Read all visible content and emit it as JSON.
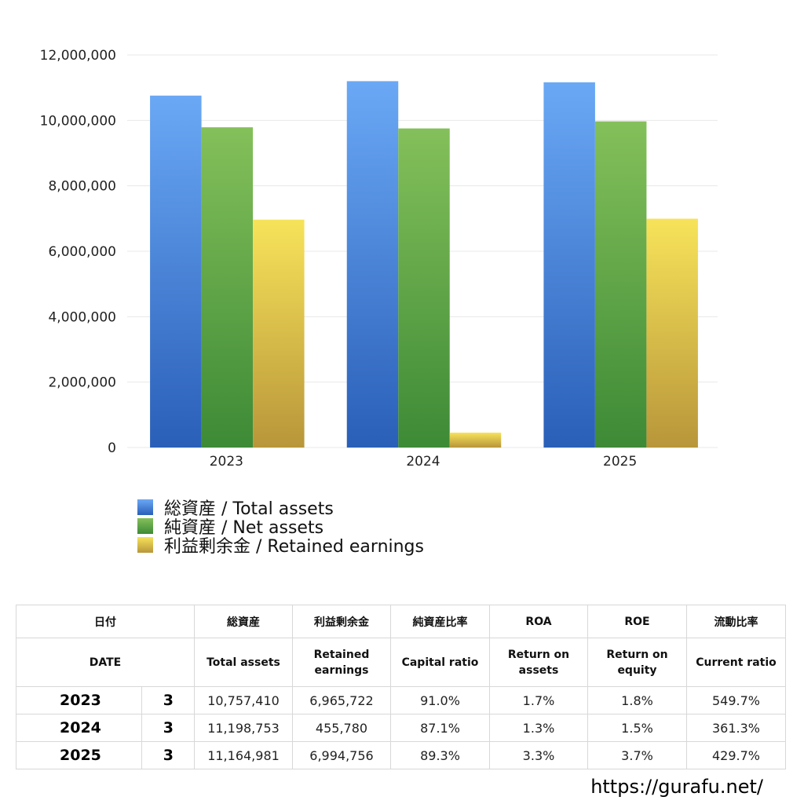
{
  "colors": {
    "total_top": "#6aa8f5",
    "total_bottom": "#2a5fb8",
    "net_top": "#84c05a",
    "net_bottom": "#3d8a36",
    "ret_top": "#f7e35a",
    "ret_bottom": "#b8963a",
    "grid": "#e8e8e8"
  },
  "chart_data": {
    "type": "bar",
    "categories": [
      "2023",
      "2024",
      "2025"
    ],
    "series": [
      {
        "name": "総資産 / Total assets",
        "values": [
          10757410,
          11198753,
          11164981
        ]
      },
      {
        "name": "純資産 / Net assets",
        "values": [
          9789000,
          9754000,
          9970000
        ]
      },
      {
        "name": "利益剰余金 / Retained earnings",
        "values": [
          6965722,
          455780,
          6994756
        ]
      }
    ],
    "y_ticks": [
      "12,000,000",
      "10,000,000",
      "8,000,000",
      "6,000,000",
      "4,000,000",
      "2,000,000",
      "0"
    ],
    "ylim": [
      0,
      12000000
    ],
    "grid": true,
    "legend_position": "bottom-left"
  },
  "table": {
    "headers_jp": [
      "日付",
      "総資産",
      "利益剰余金",
      "純資産比率",
      "ROA",
      "ROE",
      "流動比率"
    ],
    "headers_en": {
      "date": "DATE",
      "total_assets": "Total assets",
      "retained": "Retained earnings",
      "capital_ratio": "Capital ratio",
      "roa": "Return on assets",
      "roe": "Return on equity",
      "current_ratio": "Current ratio"
    },
    "rows": [
      {
        "year": "2023",
        "month": "3",
        "total_assets": "10,757,410",
        "retained": "6,965,722",
        "capital_ratio": "91.0%",
        "roa": "1.7%",
        "roe": "1.8%",
        "current_ratio": "549.7%"
      },
      {
        "year": "2024",
        "month": "3",
        "total_assets": "11,198,753",
        "retained": "455,780",
        "capital_ratio": "87.1%",
        "roa": "1.3%",
        "roe": "1.5%",
        "current_ratio": "361.3%"
      },
      {
        "year": "2025",
        "month": "3",
        "total_assets": "11,164,981",
        "retained": "6,994,756",
        "capital_ratio": "89.3%",
        "roa": "3.3%",
        "roe": "3.7%",
        "current_ratio": "429.7%"
      }
    ]
  },
  "site_url": "https://gurafu.net/"
}
